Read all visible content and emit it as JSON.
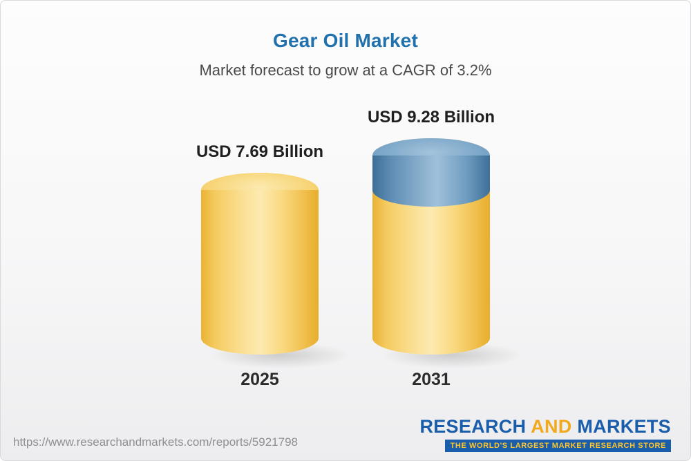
{
  "page": {
    "source_url": "https://www.researchandmarkets.com/reports/5921798"
  },
  "chart_data": {
    "type": "bar",
    "title": "Gear Oil Market",
    "subtitle": "Market forecast to grow at a CAGR of 3.2%",
    "cagr_percent": 3.2,
    "unit": "USD Billion",
    "categories": [
      "2025",
      "2031"
    ],
    "values": [
      7.69,
      9.28
    ],
    "value_labels": [
      "USD 7.69 Billion",
      "USD 9.28 Billion"
    ],
    "ylim": [
      0,
      10
    ],
    "grid": false,
    "legend": "none",
    "colors": {
      "base_segment": "#f6cf67",
      "growth_segment": "#6f9cc0",
      "title_text": "#2171ad"
    }
  },
  "logo": {
    "part1": "RESEARCH",
    "part2": "AND",
    "part3": "MARKETS",
    "tagline": "THE WORLD'S LARGEST MARKET RESEARCH STORE"
  }
}
